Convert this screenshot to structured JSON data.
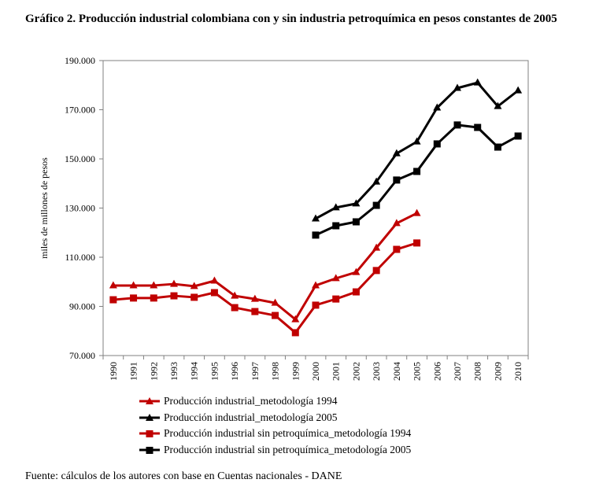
{
  "title": "Gráfico 2. Producción industrial colombiana con y sin industria petroquímica en pesos constantes de 2005",
  "source": "Fuente: cálculos de los autores con base en Cuentas nacionales - DANE",
  "chart_data": {
    "type": "line",
    "title": "Gráfico 2. Producción industrial colombiana con y sin industria petroquímica en pesos constantes de 2005",
    "xlabel": "",
    "ylabel": "miles de millones de pesos",
    "ylim": [
      70000,
      190000
    ],
    "yticks": [
      70000,
      90000,
      110000,
      130000,
      150000,
      170000,
      190000
    ],
    "ytick_labels": [
      "70.000",
      "90.000",
      "110.000",
      "130.000",
      "150.000",
      "170.000",
      "190.000"
    ],
    "x": [
      "1990",
      "1991",
      "1992",
      "1993",
      "1994",
      "1995",
      "1996",
      "1997",
      "1998",
      "1999",
      "2000",
      "2001",
      "2002",
      "2003",
      "2004",
      "2005",
      "2006",
      "2007",
      "2008",
      "2009",
      "2010"
    ],
    "grid": false,
    "legend_position": "bottom",
    "series": [
      {
        "name": "Producción industrial_metodología 1994",
        "color": "#c00000",
        "marker": "triangle",
        "values": [
          98500,
          98500,
          98500,
          99100,
          98200,
          100400,
          94300,
          93000,
          91400,
          84700,
          98500,
          101400,
          103900,
          113800,
          123800,
          127900,
          null,
          null,
          null,
          null,
          null
        ]
      },
      {
        "name": "Producción industrial_metodología 2005",
        "color": "#000000",
        "marker": "triangle",
        "values": [
          null,
          null,
          null,
          null,
          null,
          null,
          null,
          null,
          null,
          null,
          125700,
          130200,
          131800,
          140700,
          152200,
          157000,
          170800,
          178800,
          181000,
          171400,
          177800
        ]
      },
      {
        "name": "Producción industrial sin petroquímica_metodología 1994",
        "color": "#c00000",
        "marker": "square",
        "values": [
          92700,
          93400,
          93400,
          94300,
          93700,
          95600,
          89500,
          87900,
          86300,
          79300,
          90500,
          93000,
          95900,
          104600,
          113200,
          115800,
          null,
          null,
          null,
          null,
          null
        ]
      },
      {
        "name": "Producción industrial sin petroquímica_metodología 2005",
        "color": "#000000",
        "marker": "square",
        "values": [
          null,
          null,
          null,
          null,
          null,
          null,
          null,
          null,
          null,
          null,
          119000,
          122800,
          124400,
          131100,
          141400,
          144900,
          156100,
          163800,
          162800,
          154800,
          159300
        ]
      }
    ]
  }
}
